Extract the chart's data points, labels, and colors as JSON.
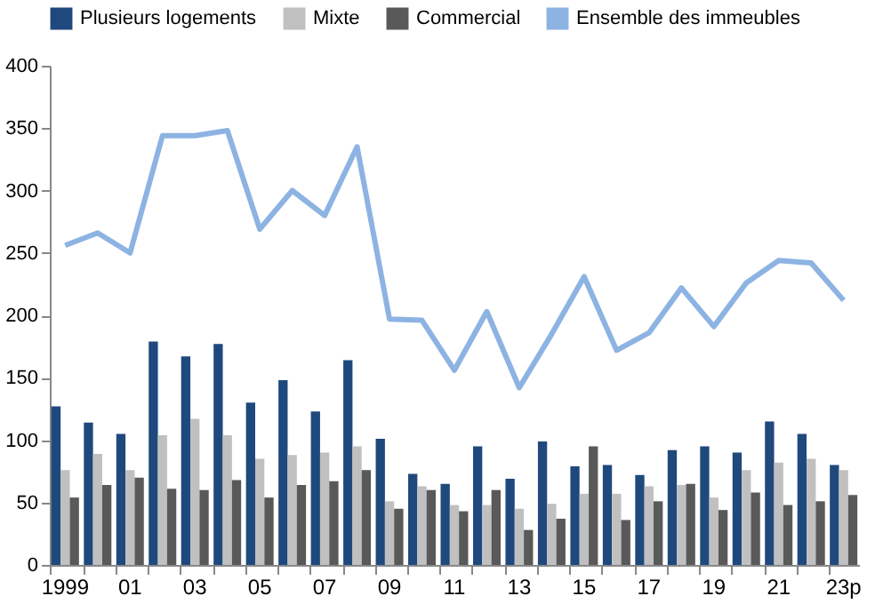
{
  "chart_data": {
    "type": "bar",
    "categories": [
      "1999",
      null,
      "01",
      null,
      "03",
      null,
      "05",
      null,
      "07",
      null,
      "09",
      null,
      "11",
      null,
      "13",
      null,
      "15",
      null,
      "17",
      null,
      "19",
      null,
      "21",
      null,
      "23p"
    ],
    "series": [
      {
        "name": "Plusieurs logements",
        "color": "#1f497d",
        "values": [
          127,
          114,
          105,
          179,
          167,
          177,
          130,
          148,
          123,
          164,
          101,
          73,
          65,
          95,
          69,
          99,
          79,
          80,
          72,
          92,
          95,
          90,
          115,
          105,
          80
        ]
      },
      {
        "name": "Mixte",
        "color": "#c0c0c0",
        "values": [
          76,
          89,
          76,
          104,
          117,
          104,
          85,
          88,
          90,
          95,
          51,
          63,
          48,
          48,
          45,
          49,
          57,
          57,
          63,
          64,
          54,
          76,
          82,
          85,
          76
        ]
      },
      {
        "name": "Commercial",
        "color": "#595959",
        "values": [
          54,
          64,
          70,
          61,
          60,
          68,
          54,
          64,
          67,
          76,
          45,
          60,
          43,
          60,
          28,
          37,
          95,
          36,
          51,
          65,
          44,
          58,
          48,
          51,
          56
        ]
      },
      {
        "name": "Ensemble des immeubles",
        "type": "line",
        "color": "#8db3e2",
        "values": [
          256,
          266,
          250,
          344,
          344,
          348,
          269,
          300,
          280,
          335,
          197,
          196,
          156,
          203,
          142,
          185,
          231,
          172,
          186,
          222,
          191,
          226,
          244,
          242,
          212
        ]
      }
    ],
    "ylim": [
      0,
      400
    ],
    "yticks": [
      0,
      50,
      100,
      150,
      200,
      250,
      300,
      350,
      400
    ],
    "grid": false,
    "legend": "top"
  }
}
